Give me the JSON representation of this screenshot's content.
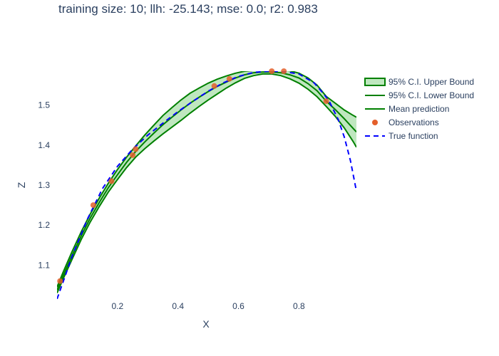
{
  "chart_data": {
    "type": "line",
    "title": "training size: 10; llh: -25.143; mse: 0.0; r2: 0.983",
    "xlabel": "X",
    "ylabel": "Z",
    "xlim": [
      0.0,
      0.99
    ],
    "ylim": [
      1.015,
      1.585
    ],
    "x_ticks": [
      0.2,
      0.4,
      0.6,
      0.8
    ],
    "y_ticks": [
      1.1,
      1.2,
      1.3,
      1.4,
      1.5
    ],
    "grid": false,
    "legend_position": "right",
    "x": [
      0.0,
      0.02,
      0.05,
      0.08,
      0.11,
      0.14,
      0.17,
      0.2,
      0.23,
      0.26,
      0.29,
      0.32,
      0.35,
      0.38,
      0.41,
      0.44,
      0.47,
      0.5,
      0.53,
      0.56,
      0.59,
      0.62,
      0.65,
      0.68,
      0.71,
      0.74,
      0.77,
      0.8,
      0.83,
      0.86,
      0.89,
      0.92,
      0.95,
      0.98,
      0.99
    ],
    "series": [
      {
        "name": "95% C.I. Upper Bound",
        "color": "#008000",
        "fill": "rgba(0,160,0,0.25)",
        "values": [
          1.045,
          1.082,
          1.134,
          1.183,
          1.228,
          1.268,
          1.305,
          1.339,
          1.37,
          1.398,
          1.425,
          1.45,
          1.474,
          1.494,
          1.513,
          1.53,
          1.543,
          1.555,
          1.565,
          1.573,
          1.58,
          1.585,
          1.587,
          1.587,
          1.587,
          1.588,
          1.586,
          1.58,
          1.568,
          1.55,
          1.522,
          1.505,
          1.488,
          1.474,
          1.47
        ]
      },
      {
        "name": "95% C.I. Lower Bound",
        "color": "#008000",
        "values": [
          1.03,
          1.065,
          1.115,
          1.164,
          1.208,
          1.247,
          1.283,
          1.314,
          1.344,
          1.37,
          1.391,
          1.41,
          1.428,
          1.445,
          1.462,
          1.48,
          1.497,
          1.513,
          1.528,
          1.543,
          1.556,
          1.567,
          1.574,
          1.578,
          1.578,
          1.574,
          1.566,
          1.555,
          1.54,
          1.521,
          1.497,
          1.472,
          1.443,
          1.408,
          1.395
        ]
      },
      {
        "name": "Mean prediction",
        "color": "#008000",
        "values": [
          1.037,
          1.073,
          1.124,
          1.173,
          1.218,
          1.257,
          1.294,
          1.326,
          1.357,
          1.384,
          1.408,
          1.43,
          1.451,
          1.47,
          1.488,
          1.505,
          1.52,
          1.534,
          1.547,
          1.558,
          1.568,
          1.576,
          1.581,
          1.583,
          1.583,
          1.581,
          1.576,
          1.568,
          1.554,
          1.536,
          1.51,
          1.489,
          1.466,
          1.441,
          1.433
        ]
      },
      {
        "name": "True function",
        "color": "#0000ff",
        "dash": true,
        "x": [
          0.0,
          0.05,
          0.1,
          0.15,
          0.2,
          0.25,
          0.3,
          0.35,
          0.4,
          0.45,
          0.5,
          0.55,
          0.6,
          0.65,
          0.7,
          0.75,
          0.8,
          0.85,
          0.88,
          0.9,
          0.93,
          0.95,
          0.97,
          0.99
        ],
        "values": [
          1.015,
          1.122,
          1.214,
          1.291,
          1.347,
          1.39,
          1.425,
          1.455,
          1.484,
          1.51,
          1.535,
          1.556,
          1.572,
          1.582,
          1.585,
          1.584,
          1.578,
          1.556,
          1.53,
          1.51,
          1.464,
          1.42,
          1.362,
          1.285
        ]
      }
    ],
    "observations": {
      "name": "Observations",
      "color": "#e45f2b",
      "x": [
        0.01,
        0.12,
        0.18,
        0.25,
        0.26,
        0.52,
        0.57,
        0.71,
        0.75,
        0.89
      ],
      "y": [
        1.06,
        1.25,
        1.31,
        1.375,
        1.39,
        1.548,
        1.566,
        1.585,
        1.585,
        1.51
      ]
    }
  }
}
